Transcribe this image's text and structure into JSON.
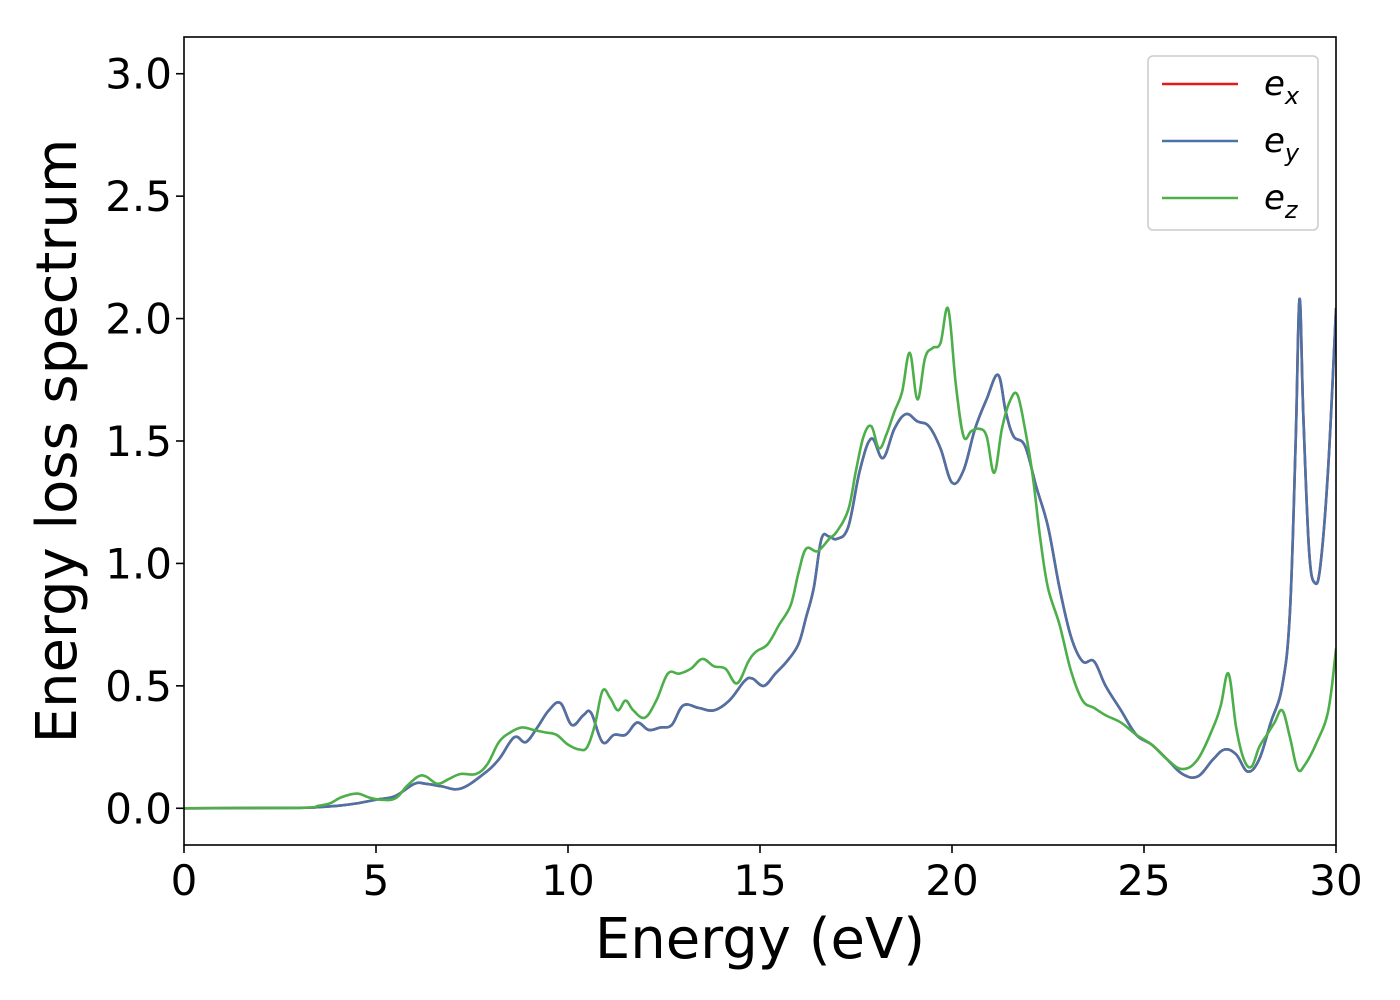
{
  "chart_data": {
    "type": "line",
    "title": "",
    "xlabel": "Energy (eV)",
    "ylabel": "Energy loss spectrum",
    "xlim": [
      0,
      30
    ],
    "ylim": [
      -0.15,
      3.15
    ],
    "x_ticks": [
      0,
      5,
      10,
      15,
      20,
      25,
      30
    ],
    "x_tick_labels": [
      "0",
      "5",
      "10",
      "15",
      "20",
      "25",
      "30"
    ],
    "y_ticks": [
      0.0,
      0.5,
      1.0,
      1.5,
      2.0,
      2.5,
      3.0
    ],
    "y_tick_labels": [
      "0.0",
      "0.5",
      "1.0",
      "1.5",
      "2.0",
      "2.5",
      "3.0"
    ],
    "grid": false,
    "legend_position": "top-right",
    "series": [
      {
        "name": "e_x",
        "label_base": "e",
        "label_sub": "x",
        "color": "#e41a1c",
        "x": [
          0,
          3,
          3.5,
          4,
          4.5,
          5,
          5.5,
          6,
          6.3,
          6.7,
          7.2,
          7.8,
          8.2,
          8.6,
          8.9,
          9.2,
          9.5,
          9.8,
          10.1,
          10.4,
          10.6,
          10.9,
          11.2,
          11.5,
          11.8,
          12.1,
          12.4,
          12.7,
          13,
          13.4,
          13.8,
          14.2,
          14.6,
          14.8,
          15.1,
          15.4,
          15.7,
          16,
          16.2,
          16.4,
          16.6,
          16.8,
          17,
          17.3,
          17.6,
          17.9,
          18.2,
          18.5,
          18.8,
          19.1,
          19.4,
          19.7,
          20,
          20.3,
          20.6,
          20.9,
          21.2,
          21.4,
          21.6,
          21.9,
          22.2,
          22.5,
          22.8,
          23.1,
          23.4,
          23.7,
          24,
          24.4,
          24.8,
          25.2,
          25.6,
          26,
          26.4,
          26.8,
          27.1,
          27.4,
          27.7,
          28,
          28.3,
          28.6,
          28.8,
          28.95,
          29.05,
          29.15,
          29.3,
          29.45,
          29.6,
          29.8,
          30
        ],
        "y": [
          0,
          0.002,
          0.005,
          0.01,
          0.02,
          0.035,
          0.05,
          0.1,
          0.1,
          0.09,
          0.08,
          0.14,
          0.2,
          0.29,
          0.27,
          0.33,
          0.4,
          0.43,
          0.34,
          0.38,
          0.39,
          0.27,
          0.3,
          0.3,
          0.35,
          0.32,
          0.33,
          0.34,
          0.42,
          0.41,
          0.4,
          0.44,
          0.52,
          0.53,
          0.5,
          0.55,
          0.6,
          0.67,
          0.78,
          0.9,
          1.1,
          1.11,
          1.1,
          1.15,
          1.38,
          1.51,
          1.43,
          1.55,
          1.61,
          1.58,
          1.56,
          1.47,
          1.33,
          1.38,
          1.55,
          1.67,
          1.77,
          1.62,
          1.52,
          1.48,
          1.31,
          1.15,
          0.9,
          0.7,
          0.6,
          0.6,
          0.5,
          0.4,
          0.3,
          0.26,
          0.2,
          0.14,
          0.13,
          0.2,
          0.24,
          0.22,
          0.15,
          0.2,
          0.35,
          0.5,
          0.8,
          1.5,
          2.08,
          1.6,
          1.05,
          0.92,
          1.0,
          1.4,
          2.04
        ]
      },
      {
        "name": "e_y",
        "label_base": "e",
        "label_sub": "y",
        "color": "#4c72a6",
        "x": [
          0,
          3,
          3.5,
          4,
          4.5,
          5,
          5.5,
          6,
          6.3,
          6.7,
          7.2,
          7.8,
          8.2,
          8.6,
          8.9,
          9.2,
          9.5,
          9.8,
          10.1,
          10.4,
          10.6,
          10.9,
          11.2,
          11.5,
          11.8,
          12.1,
          12.4,
          12.7,
          13,
          13.4,
          13.8,
          14.2,
          14.6,
          14.8,
          15.1,
          15.4,
          15.7,
          16,
          16.2,
          16.4,
          16.6,
          16.8,
          17,
          17.3,
          17.6,
          17.9,
          18.2,
          18.5,
          18.8,
          19.1,
          19.4,
          19.7,
          20,
          20.3,
          20.6,
          20.9,
          21.2,
          21.4,
          21.6,
          21.9,
          22.2,
          22.5,
          22.8,
          23.1,
          23.4,
          23.7,
          24,
          24.4,
          24.8,
          25.2,
          25.6,
          26,
          26.4,
          26.8,
          27.1,
          27.4,
          27.7,
          28,
          28.3,
          28.6,
          28.8,
          28.95,
          29.05,
          29.15,
          29.3,
          29.45,
          29.6,
          29.8,
          30
        ],
        "y": [
          0,
          0.002,
          0.005,
          0.01,
          0.02,
          0.035,
          0.05,
          0.1,
          0.1,
          0.09,
          0.08,
          0.14,
          0.2,
          0.29,
          0.27,
          0.33,
          0.4,
          0.43,
          0.34,
          0.38,
          0.39,
          0.27,
          0.3,
          0.3,
          0.35,
          0.32,
          0.33,
          0.34,
          0.42,
          0.41,
          0.4,
          0.44,
          0.52,
          0.53,
          0.5,
          0.55,
          0.6,
          0.67,
          0.78,
          0.9,
          1.1,
          1.11,
          1.1,
          1.15,
          1.38,
          1.51,
          1.43,
          1.55,
          1.61,
          1.58,
          1.56,
          1.47,
          1.33,
          1.38,
          1.55,
          1.67,
          1.77,
          1.62,
          1.52,
          1.48,
          1.31,
          1.15,
          0.9,
          0.7,
          0.6,
          0.6,
          0.5,
          0.4,
          0.3,
          0.26,
          0.2,
          0.14,
          0.13,
          0.2,
          0.24,
          0.22,
          0.15,
          0.2,
          0.35,
          0.5,
          0.8,
          1.5,
          2.08,
          1.6,
          1.05,
          0.92,
          1.0,
          1.4,
          2.04
        ]
      },
      {
        "name": "e_z",
        "label_base": "e",
        "label_sub": "z",
        "color": "#4daf4a",
        "x": [
          0,
          3,
          3.5,
          3.8,
          4.1,
          4.5,
          4.8,
          5.1,
          5.5,
          5.8,
          6.1,
          6.3,
          6.6,
          6.9,
          7.2,
          7.6,
          7.9,
          8.2,
          8.5,
          8.8,
          9.1,
          9.4,
          9.7,
          10,
          10.3,
          10.5,
          10.7,
          10.9,
          11.1,
          11.3,
          11.5,
          11.7,
          12,
          12.3,
          12.6,
          12.9,
          13.2,
          13.5,
          13.8,
          14.1,
          14.4,
          14.7,
          14.9,
          15.2,
          15.5,
          15.8,
          16,
          16.2,
          16.5,
          16.8,
          17,
          17.3,
          17.5,
          17.7,
          17.9,
          18.1,
          18.3,
          18.5,
          18.7,
          18.9,
          19.1,
          19.3,
          19.5,
          19.7,
          19.9,
          20.1,
          20.3,
          20.5,
          20.7,
          20.9,
          21.1,
          21.3,
          21.5,
          21.7,
          21.9,
          22.1,
          22.3,
          22.5,
          22.8,
          23.1,
          23.4,
          23.7,
          24,
          24.4,
          24.8,
          25.2,
          25.6,
          26,
          26.4,
          26.8,
          27.0,
          27.2,
          27.4,
          27.6,
          27.8,
          28.0,
          28.2,
          28.4,
          28.6,
          28.8,
          29.0,
          29.2,
          29.5,
          29.8,
          30
        ],
        "y": [
          0,
          0.002,
          0.01,
          0.02,
          0.045,
          0.06,
          0.045,
          0.035,
          0.04,
          0.09,
          0.13,
          0.13,
          0.1,
          0.12,
          0.14,
          0.14,
          0.18,
          0.27,
          0.31,
          0.33,
          0.32,
          0.31,
          0.3,
          0.26,
          0.24,
          0.25,
          0.34,
          0.48,
          0.45,
          0.4,
          0.44,
          0.4,
          0.37,
          0.44,
          0.55,
          0.55,
          0.57,
          0.61,
          0.58,
          0.57,
          0.51,
          0.6,
          0.64,
          0.67,
          0.75,
          0.83,
          0.96,
          1.06,
          1.05,
          1.1,
          1.13,
          1.22,
          1.38,
          1.52,
          1.56,
          1.47,
          1.53,
          1.62,
          1.7,
          1.86,
          1.67,
          1.84,
          1.88,
          1.9,
          2.04,
          1.73,
          1.52,
          1.54,
          1.55,
          1.52,
          1.37,
          1.55,
          1.66,
          1.69,
          1.55,
          1.36,
          1.1,
          0.9,
          0.75,
          0.56,
          0.44,
          0.41,
          0.38,
          0.35,
          0.3,
          0.26,
          0.2,
          0.16,
          0.2,
          0.33,
          0.42,
          0.55,
          0.33,
          0.2,
          0.17,
          0.25,
          0.3,
          0.35,
          0.4,
          0.29,
          0.16,
          0.18,
          0.27,
          0.4,
          0.65
        ]
      }
    ]
  }
}
